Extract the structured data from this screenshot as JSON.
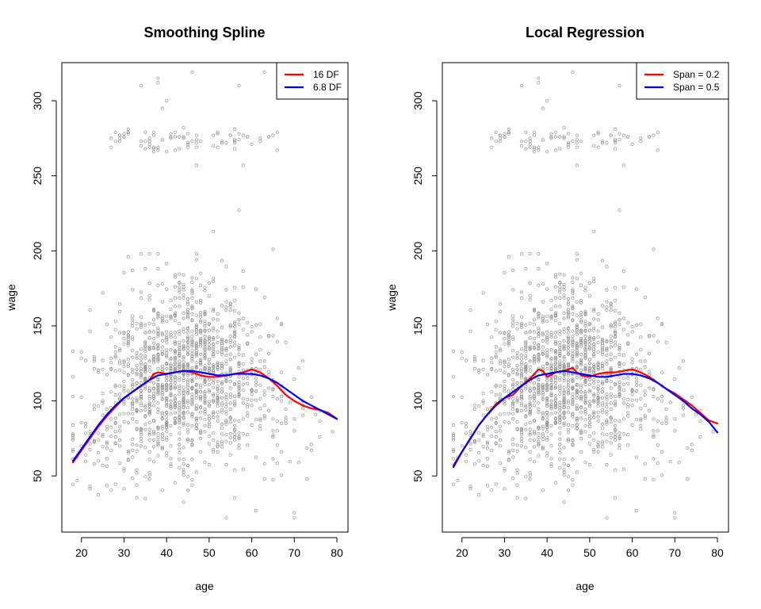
{
  "chart_data": [
    {
      "type": "scatter",
      "title": "Smoothing Spline",
      "xlabel": "age",
      "ylabel": "wage",
      "xlim": [
        18,
        80
      ],
      "ylim": [
        20,
        318
      ],
      "xticks": [
        "20",
        "30",
        "40",
        "50",
        "60",
        "70",
        "80"
      ],
      "yticks": [
        "50",
        "100",
        "150",
        "200",
        "250",
        "300"
      ],
      "legend_position": "top-right",
      "points_color": "#9a9a9a",
      "series": [
        {
          "name": "16 DF",
          "color": "#ff0000",
          "x": [
            18,
            20,
            22,
            24,
            26,
            28,
            30,
            32,
            34,
            36,
            37,
            38,
            40,
            42,
            44,
            46,
            48,
            50,
            52,
            54,
            56,
            58,
            60,
            62,
            64,
            66,
            68,
            70,
            72,
            74,
            76,
            78,
            80
          ],
          "y": [
            59,
            67,
            75,
            83,
            90,
            96,
            102,
            106,
            110,
            114,
            118,
            119,
            118,
            119,
            120,
            119,
            117,
            116,
            116,
            117,
            118,
            119,
            121,
            119,
            115,
            110,
            104,
            100,
            97,
            95,
            94,
            92,
            88
          ]
        },
        {
          "name": "6.8 DF",
          "color": "#0000ff",
          "x": [
            18,
            20,
            22,
            24,
            26,
            28,
            30,
            32,
            34,
            36,
            38,
            40,
            42,
            44,
            46,
            48,
            50,
            52,
            54,
            56,
            58,
            60,
            62,
            64,
            66,
            68,
            70,
            72,
            74,
            76,
            78,
            80
          ],
          "y": [
            60,
            68,
            76,
            84,
            91,
            97,
            102,
            106,
            110,
            114,
            117,
            118,
            119,
            120,
            120,
            119,
            118,
            117,
            117,
            118,
            118,
            118,
            117,
            115,
            112,
            108,
            104,
            100,
            97,
            94,
            91,
            88
          ]
        }
      ]
    },
    {
      "type": "scatter",
      "title": "Local Regression",
      "xlabel": "age",
      "ylabel": "wage",
      "xlim": [
        18,
        80
      ],
      "ylim": [
        20,
        318
      ],
      "xticks": [
        "20",
        "30",
        "40",
        "50",
        "60",
        "70",
        "80"
      ],
      "yticks": [
        "50",
        "100",
        "150",
        "200",
        "250",
        "300"
      ],
      "legend_position": "top-right",
      "points_color": "#9a9a9a",
      "series": [
        {
          "name": "Span = 0.2",
          "color": "#ff0000",
          "x": [
            18,
            20,
            22,
            24,
            26,
            28,
            30,
            32,
            34,
            36,
            38,
            39,
            40,
            42,
            44,
            46,
            47,
            48,
            50,
            52,
            54,
            56,
            58,
            60,
            62,
            64,
            66,
            68,
            70,
            72,
            74,
            76,
            78,
            80
          ],
          "y": [
            57,
            66,
            75,
            84,
            91,
            98,
            102,
            104,
            110,
            115,
            121,
            120,
            116,
            119,
            120,
            122,
            119,
            117,
            116,
            118,
            119,
            119,
            120,
            121,
            119,
            116,
            112,
            108,
            105,
            101,
            97,
            92,
            87,
            85
          ]
        },
        {
          "name": "Span = 0.5",
          "color": "#0000ff",
          "x": [
            18,
            20,
            22,
            24,
            26,
            28,
            30,
            32,
            34,
            36,
            38,
            40,
            42,
            44,
            46,
            48,
            50,
            52,
            54,
            56,
            58,
            60,
            62,
            64,
            66,
            68,
            70,
            72,
            74,
            76,
            78,
            80
          ],
          "y": [
            56,
            66,
            75,
            84,
            91,
            97,
            102,
            106,
            110,
            114,
            117,
            118,
            119,
            120,
            119,
            118,
            117,
            116,
            116,
            117,
            118,
            118,
            117,
            115,
            112,
            108,
            104,
            100,
            95,
            91,
            86,
            79
          ]
        }
      ]
    }
  ]
}
